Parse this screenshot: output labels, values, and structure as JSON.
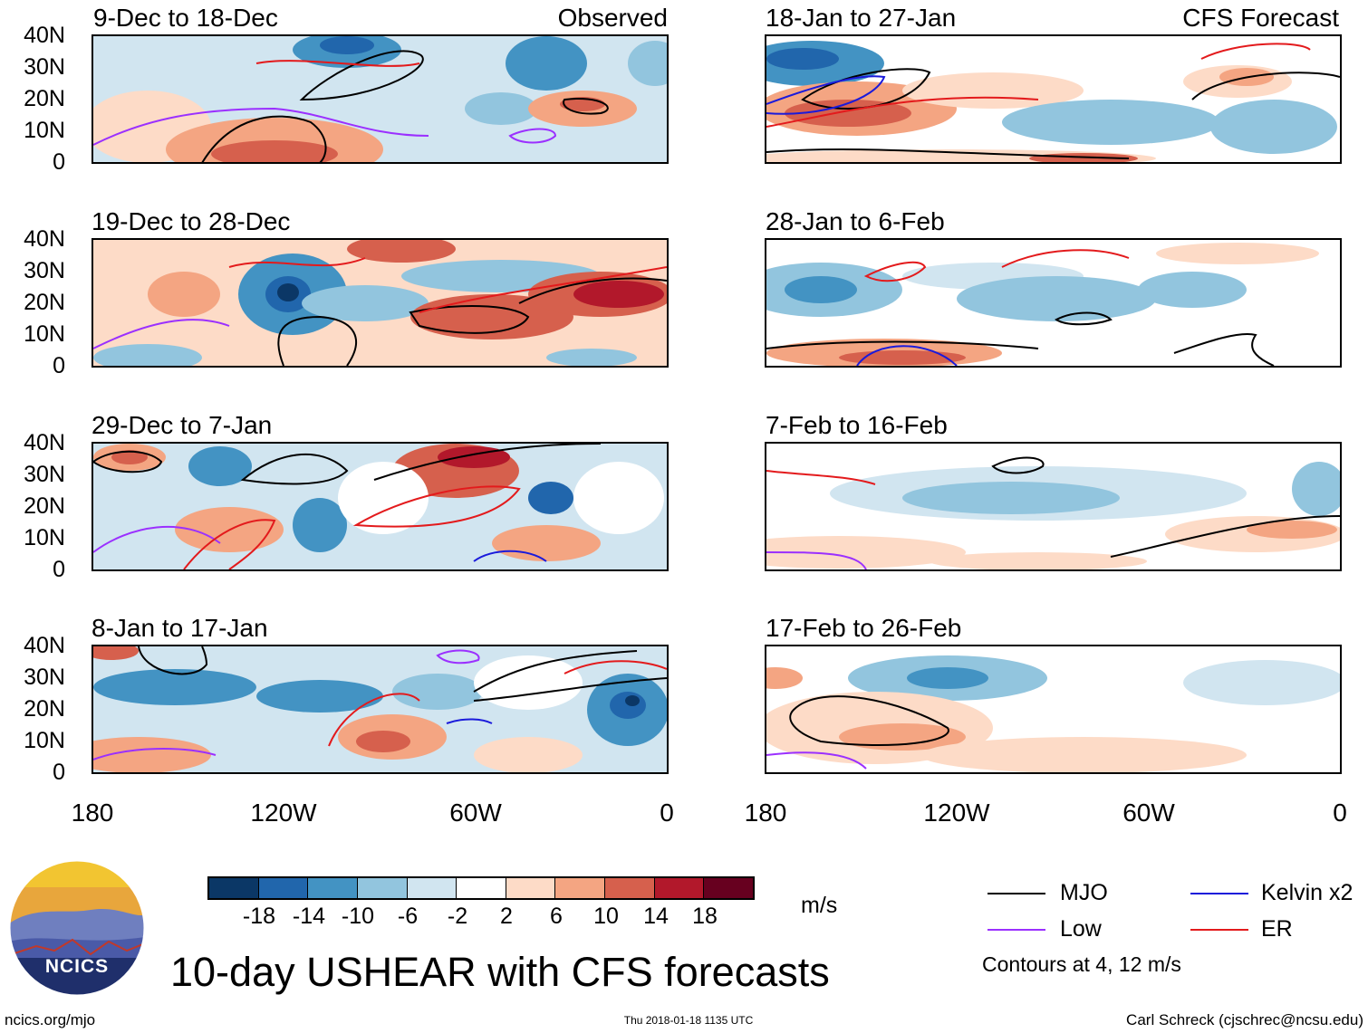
{
  "panels_left": [
    {
      "title": "9-Dec to 18-Dec",
      "tag": "Observed"
    },
    {
      "title": "19-Dec to 28-Dec",
      "tag": ""
    },
    {
      "title": "29-Dec to 7-Jan",
      "tag": ""
    },
    {
      "title": "8-Jan to 17-Jan",
      "tag": ""
    }
  ],
  "panels_right": [
    {
      "title": "18-Jan to 27-Jan",
      "tag": "CFS Forecast"
    },
    {
      "title": "28-Jan to 6-Feb",
      "tag": ""
    },
    {
      "title": "7-Feb to 16-Feb",
      "tag": ""
    },
    {
      "title": "17-Feb to 26-Feb",
      "tag": ""
    }
  ],
  "lat_labels": [
    "40N",
    "30N",
    "20N",
    "10N",
    "0"
  ],
  "lon_labels": [
    "180",
    "120W",
    "60W",
    "0"
  ],
  "colorbar": {
    "labels": [
      "-18",
      "-14",
      "-10",
      "-6",
      "-2",
      "2",
      "6",
      "10",
      "14",
      "18"
    ],
    "unit": "m/s",
    "colors": [
      "#0b3766",
      "#2166ac",
      "#4393c3",
      "#92c5de",
      "#d1e5f0",
      "#ffffff",
      "#fddbc7",
      "#f4a582",
      "#d6604d",
      "#b2182b",
      "#67001f"
    ]
  },
  "legend": {
    "items": [
      {
        "label": "MJO",
        "color": "#000000"
      },
      {
        "label": "Kelvin x2",
        "color": "#1a1adb"
      },
      {
        "label": "Low",
        "color": "#9b30ff"
      },
      {
        "label": "ER",
        "color": "#e31a1c"
      }
    ],
    "note": "Contours at 4, 12 m/s"
  },
  "logo": {
    "text": "NCICS"
  },
  "title": "10-day USHEAR with CFS forecasts",
  "footer": {
    "left": "ncics.org/mjo",
    "center": "Thu 2018-01-18 1135 UTC",
    "right": "Carl Schreck (cjschrec@ncsu.edu)"
  }
}
